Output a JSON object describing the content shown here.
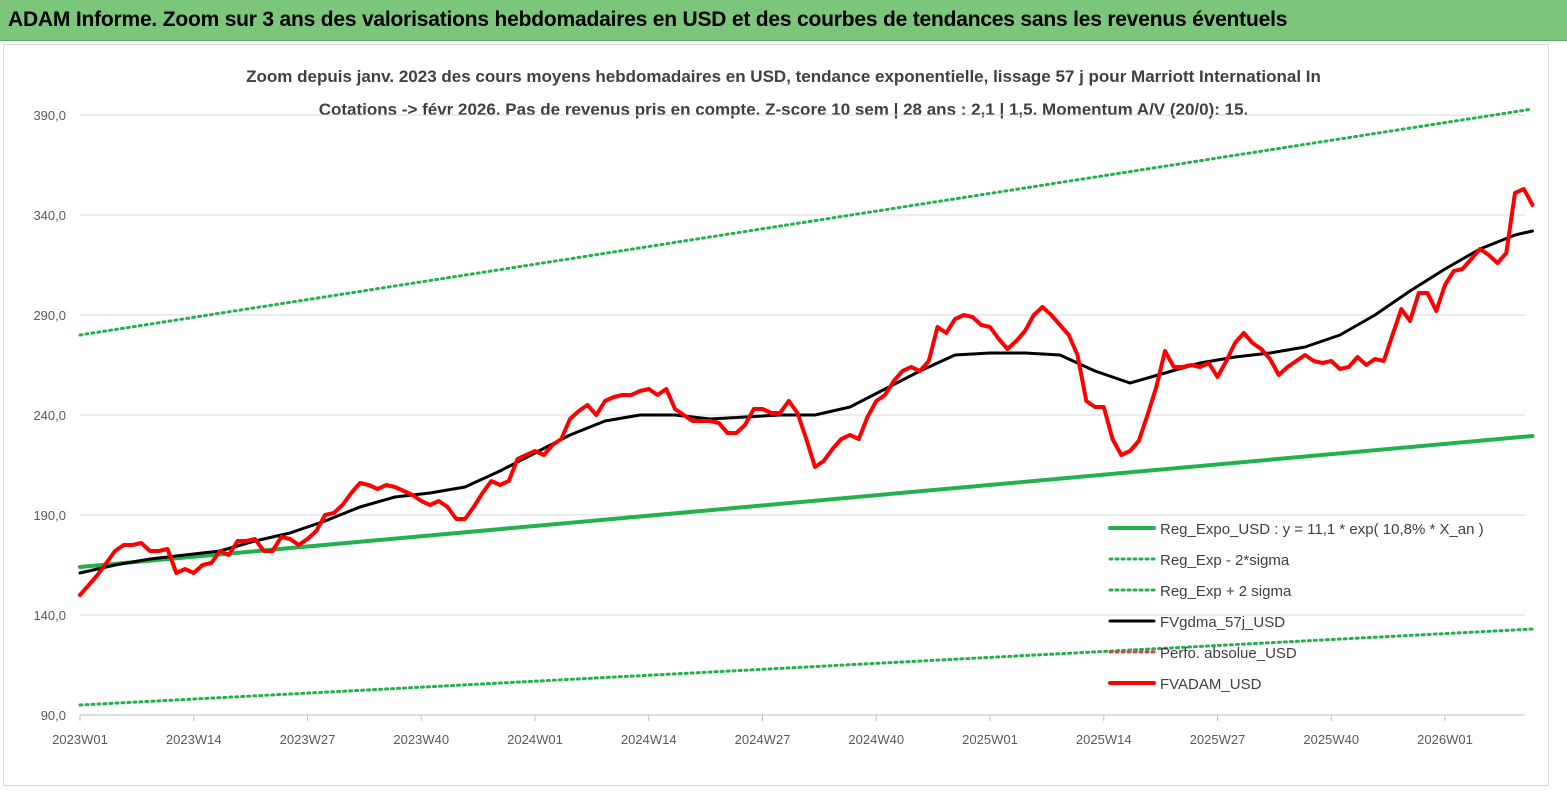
{
  "header": {
    "banner_text": "ADAM Informe. Zoom sur 3 ans des valorisations hebdomadaires en USD et des courbes de tendances sans les revenus éventuels"
  },
  "chart_data": {
    "type": "line",
    "title_line1": "Zoom depuis janv. 2023 des cours moyens hebdomadaires en USD, tendance exponentielle, lissage 57 j pour Marriott International In",
    "title_line2": "Cotations -> févr 2026.  Pas de revenus pris en compte. Z-score 10 sem  | 28 ans : 2,1  | 1,5. Momentum A/V (20/0): 15.",
    "ylim": [
      90,
      400
    ],
    "y_ticks": [
      90,
      140,
      190,
      240,
      290,
      340,
      390
    ],
    "y_tick_labels": [
      "90,0",
      "140,0",
      "190,0",
      "240,0",
      "290,0",
      "340,0",
      "390,0"
    ],
    "x_ticks": [
      "2023W01",
      "2023W14",
      "2023W27",
      "2023W40",
      "2024W01",
      "2024W14",
      "2024W27",
      "2024W40",
      "2025W01",
      "2025W14",
      "2025W27",
      "2025W40",
      "2026W01"
    ],
    "grid": "horizontal",
    "legend_position": "bottom-right",
    "x_range_weeks": [
      0,
      166
    ],
    "series": [
      {
        "name": "Reg_Expo_USD : y = 11,1 * exp( 10,8% *  X_an )",
        "color": "#22b14c",
        "style": "solid-thick",
        "x": [
          0,
          166
        ],
        "values": [
          164,
          229.5
        ]
      },
      {
        "name": "Reg_Exp - 2*sigma",
        "color": "#22b14c",
        "style": "dotted",
        "x": [
          0,
          166
        ],
        "values": [
          95,
          133
        ]
      },
      {
        "name": "Reg_Exp + 2 sigma",
        "color": "#22b14c",
        "style": "dotted",
        "x": [
          0,
          166
        ],
        "values": [
          280,
          393
        ]
      },
      {
        "name": "FVgdma_57j_USD",
        "color": "#000000",
        "style": "solid",
        "x": [
          0,
          4,
          8,
          12,
          16,
          20,
          24,
          28,
          32,
          36,
          40,
          44,
          48,
          52,
          56,
          60,
          64,
          68,
          72,
          76,
          80,
          84,
          88,
          92,
          96,
          100,
          104,
          108,
          112,
          116,
          120,
          124,
          128,
          132,
          136,
          140,
          144,
          148,
          152,
          156,
          160,
          164,
          166
        ],
        "values": [
          161,
          165,
          168,
          170,
          172,
          177,
          181,
          187,
          194,
          199,
          201,
          204,
          212,
          221,
          230,
          237,
          240,
          240,
          238,
          239,
          240,
          240,
          244,
          253,
          262,
          270,
          271,
          271,
          270,
          262,
          256,
          261,
          266,
          269,
          271,
          274,
          280,
          290,
          302,
          313,
          323,
          330,
          332
        ]
      },
      {
        "name": "Perfo. absolue_USD",
        "color": "#c0504d",
        "style": "dotted",
        "x": [],
        "values": []
      },
      {
        "name": "FVADAM_USD",
        "color": "#ff0000",
        "style": "solid-thick",
        "x": [
          0,
          1,
          2,
          3,
          4,
          5,
          6,
          7,
          8,
          9,
          10,
          11,
          12,
          13,
          14,
          15,
          16,
          17,
          18,
          19,
          20,
          21,
          22,
          23,
          24,
          25,
          26,
          27,
          28,
          29,
          30,
          31,
          32,
          33,
          34,
          35,
          36,
          37,
          38,
          39,
          40,
          41,
          42,
          43,
          44,
          45,
          46,
          47,
          48,
          49,
          50,
          51,
          52,
          53,
          54,
          55,
          56,
          57,
          58,
          59,
          60,
          61,
          62,
          63,
          64,
          65,
          66,
          67,
          68,
          69,
          70,
          71,
          72,
          73,
          74,
          75,
          76,
          77,
          78,
          79,
          80,
          81,
          82,
          83,
          84,
          85,
          86,
          87,
          88,
          89,
          90,
          91,
          92,
          93,
          94,
          95,
          96,
          97,
          98,
          99,
          100,
          101,
          102,
          103,
          104,
          105,
          106,
          107,
          108,
          109,
          110,
          111,
          112,
          113,
          114,
          115,
          116,
          117,
          118,
          119,
          120,
          121,
          122,
          123,
          124,
          125,
          126,
          127,
          128,
          129,
          130,
          131,
          132,
          133,
          134,
          135,
          136,
          137,
          138,
          139,
          140,
          141,
          142,
          143,
          144,
          145,
          146,
          147,
          148,
          149,
          150,
          151,
          152,
          153,
          154,
          155,
          156,
          157,
          158,
          159,
          160,
          161,
          162,
          163,
          164,
          165,
          166
        ],
        "values": [
          150,
          155,
          160,
          166,
          172,
          175,
          175,
          176,
          172,
          172,
          173,
          161,
          163,
          161,
          165,
          166,
          172,
          170,
          177,
          177,
          178,
          172,
          172,
          179,
          178,
          175,
          178,
          182,
          190,
          191,
          195,
          201,
          206,
          205,
          203,
          205,
          204,
          202,
          200,
          197,
          195,
          197,
          194,
          188,
          188,
          194,
          201,
          207,
          205,
          207,
          218,
          220,
          222,
          220,
          225,
          228,
          238,
          242,
          245,
          240,
          247,
          249,
          250,
          250,
          252,
          253,
          250,
          253,
          243,
          240,
          237,
          237,
          237,
          236,
          231,
          231,
          235,
          243,
          243,
          241,
          241,
          247,
          241,
          228,
          214,
          217,
          223,
          228,
          230,
          228,
          239,
          247,
          250,
          257,
          262,
          264,
          262,
          267,
          284,
          281,
          288,
          290,
          289,
          285,
          284,
          278,
          273,
          277,
          282,
          290,
          294,
          290,
          285,
          280,
          270,
          247,
          244,
          244,
          228,
          220,
          222,
          227,
          240,
          254,
          272,
          264,
          264,
          265,
          264,
          266,
          259,
          267,
          276,
          281,
          276,
          273,
          268,
          260,
          264,
          267,
          270,
          267,
          266,
          267,
          263,
          264,
          269,
          265,
          268,
          267,
          280,
          293,
          287,
          301,
          301,
          292,
          305,
          312,
          313,
          318,
          323,
          320,
          316,
          321,
          351,
          353,
          345
        ]
      }
    ]
  }
}
